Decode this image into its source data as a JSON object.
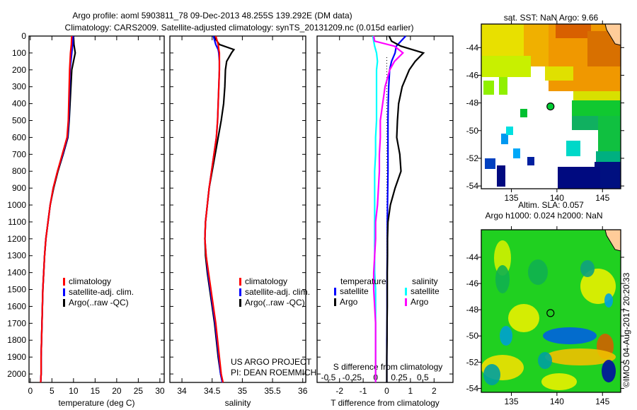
{
  "title_line1": "Argo profile: aoml 5903811_78 09-Dec-2013 48.255S 139.292E (DM data)",
  "title_line2": "Climatology: CARS2009. Satellite-adjusted climatology: synTS_20131209.nc (0.015d earlier)",
  "credit_line1": "US ARGO PROJECT",
  "credit_line2": "PI: DEAN ROEMMICH",
  "timestamp": "©IMOS 04-Aug-2017 20:20:33",
  "colors": {
    "climatology": "#ff0000",
    "satellite": "#0000ff",
    "argo": "#000000",
    "sal_sat": "#00ffff",
    "sal_argo": "#ff00ff",
    "land": "#ffcc99"
  },
  "chart_data": [
    {
      "type": "line",
      "name": "temperature",
      "xlabel": "temperature (deg C)",
      "xlim": [
        -0.3,
        31
      ],
      "ylim": [
        0,
        2050
      ],
      "y_reversed": true,
      "xticks": [
        "0",
        "5",
        "10",
        "15",
        "20",
        "25",
        "30"
      ],
      "xtick_values": [
        0,
        5,
        10,
        15,
        20,
        25,
        30
      ],
      "yticks": [
        "0",
        "100",
        "200",
        "300",
        "400",
        "500",
        "600",
        "700",
        "800",
        "900",
        "1000",
        "1100",
        "1200",
        "1300",
        "1400",
        "1500",
        "1600",
        "1700",
        "1800",
        "1900",
        "2000"
      ],
      "ytick_values": [
        0,
        100,
        200,
        300,
        400,
        500,
        600,
        700,
        800,
        900,
        1000,
        1100,
        1200,
        1300,
        1400,
        1500,
        1600,
        1700,
        1800,
        1900,
        2000
      ],
      "legend": [
        "climatology",
        "satellite-adj. clim.",
        "Argo(..raw -QC)"
      ],
      "depth": [
        0,
        50,
        100,
        200,
        300,
        400,
        500,
        600,
        700,
        800,
        900,
        1000,
        1100,
        1200,
        1300,
        1400,
        1500,
        1600,
        1700,
        1800,
        1900,
        2000,
        2050
      ],
      "series": [
        {
          "name": "climatology",
          "color": "#ff0000",
          "values": [
            9.6,
            9.5,
            9.3,
            9.1,
            9.0,
            8.9,
            8.8,
            8.5,
            7.4,
            6.3,
            5.3,
            4.6,
            4.1,
            3.6,
            3.3,
            3.1,
            2.9,
            2.8,
            2.7,
            2.6,
            2.5,
            2.5,
            2.4
          ]
        },
        {
          "name": "satellite-adj. clim.",
          "color": "#0000ff",
          "values": [
            9.9,
            9.8,
            9.6,
            9.2,
            9.1,
            9.0,
            8.9,
            8.6,
            7.5,
            6.3,
            5.3,
            4.6,
            4.1,
            3.6,
            3.3,
            3.1,
            2.9,
            2.8,
            2.7,
            2.6,
            2.5,
            2.5,
            2.4
          ]
        },
        {
          "name": "Argo(..raw -QC)",
          "color": "#000000",
          "values": [
            10.0,
            10.1,
            10.4,
            9.6,
            9.4,
            9.2,
            9.0,
            8.7,
            7.6,
            6.4,
            5.4,
            4.6,
            4.1,
            3.6,
            3.3,
            3.1,
            2.9,
            2.8,
            2.7,
            2.6,
            2.5,
            2.5,
            2.4
          ]
        }
      ]
    },
    {
      "type": "line",
      "name": "salinity",
      "xlabel": "salinity",
      "xlim": [
        33.8,
        36.05
      ],
      "ylim": [
        0,
        2050
      ],
      "y_reversed": true,
      "xticks": [
        "34",
        "34.5",
        "35",
        "35.5",
        "36"
      ],
      "xtick_values": [
        34,
        34.5,
        35,
        35.5,
        36
      ],
      "legend": [
        "climatology",
        "satellite-adj. clim.",
        "Argo(..raw -QC)"
      ],
      "depth": [
        0,
        50,
        80,
        100,
        150,
        200,
        300,
        400,
        500,
        600,
        700,
        800,
        900,
        1000,
        1100,
        1200,
        1300,
        1400,
        1500,
        1600,
        1700,
        1800,
        1900,
        2000,
        2050
      ],
      "series": [
        {
          "name": "climatology",
          "color": "#ff0000",
          "values": [
            34.56,
            34.6,
            34.61,
            34.62,
            34.62,
            34.62,
            34.61,
            34.6,
            34.59,
            34.57,
            34.53,
            34.49,
            34.45,
            34.42,
            34.39,
            34.38,
            34.4,
            34.44,
            34.48,
            34.52,
            34.56,
            34.59,
            34.62,
            34.65,
            34.68
          ]
        },
        {
          "name": "satellite-adj. clim.",
          "color": "#0000ff",
          "values": [
            34.52,
            34.56,
            34.6,
            34.61,
            34.62,
            34.62,
            34.61,
            34.6,
            34.59,
            34.57,
            34.53,
            34.49,
            34.45,
            34.42,
            34.39,
            34.38,
            34.4,
            34.43,
            34.47,
            34.51,
            34.55,
            34.58,
            34.61,
            34.64,
            34.67
          ]
        },
        {
          "name": "Argo(..raw -QC)",
          "color": "#000000",
          "values": [
            34.52,
            34.62,
            34.86,
            34.82,
            34.74,
            34.72,
            34.71,
            34.69,
            34.65,
            34.6,
            34.55,
            34.5,
            34.45,
            34.42,
            34.39,
            34.38,
            34.39,
            34.42,
            34.46,
            34.5,
            34.54,
            34.57,
            34.6,
            34.64,
            34.67
          ]
        }
      ]
    },
    {
      "type": "line",
      "name": "difference",
      "xlabel": "T difference from climatology",
      "xlabel_top": "S difference from climatology",
      "xlim": [
        -2.95,
        2.8
      ],
      "xlim_salinity": [
        -0.62,
        0.82
      ],
      "ylim": [
        0,
        2050
      ],
      "y_reversed": true,
      "xticks": [
        "-2",
        "-1",
        "0",
        "1",
        "2"
      ],
      "xtick_values": [
        -2,
        -1,
        0,
        1,
        2
      ],
      "sticks": [
        "-0.5",
        "-0.25",
        "0",
        "0.25",
        "0.5"
      ],
      "stick_values": [
        -0.5,
        -0.25,
        0,
        0.25,
        0.5
      ],
      "legend_temperature_title": "temperature",
      "legend_salinity_title": "salinity",
      "legend_temperature": [
        "satellite",
        "Argo"
      ],
      "legend_salinity": [
        "satellite",
        "Argo"
      ],
      "depth": [
        0,
        30,
        60,
        100,
        150,
        200,
        300,
        400,
        500,
        600,
        700,
        800,
        900,
        1000,
        1100,
        1200,
        1300,
        1400,
        1500,
        1600,
        1700,
        1800,
        1900,
        2000,
        2050
      ],
      "series": [
        {
          "name": "temperature satellite",
          "axis": "T",
          "color": "#0000ff",
          "values": [
            0.8,
            0.6,
            0.4,
            0.35,
            0.2,
            0.12,
            0.08,
            0.06,
            0.05,
            0.05,
            0.05,
            0.05,
            0.04,
            0.03,
            0.02,
            0.02,
            0.02,
            0.01,
            0.01,
            0.01,
            0.01,
            0.0,
            0.0,
            0.0,
            0.0
          ]
        },
        {
          "name": "temperature Argo",
          "axis": "T",
          "color": "#000000",
          "values": [
            0.1,
            0.2,
            0.6,
            1.55,
            1.2,
            0.95,
            0.65,
            0.5,
            0.45,
            0.42,
            0.55,
            0.6,
            0.35,
            0.15,
            0.05,
            0.03,
            0.03,
            0.02,
            0.02,
            0.02,
            0.01,
            0.01,
            0.0,
            0.0,
            0.0
          ]
        },
        {
          "name": "salinity satellite",
          "axis": "S",
          "color": "#00ffff",
          "values": [
            -0.03,
            -0.02,
            -0.01,
            0.01,
            0.02,
            0.01,
            0.01,
            0.01,
            0.01,
            0.0,
            0.0,
            -0.01,
            -0.01,
            -0.01,
            -0.01,
            -0.01,
            -0.01,
            -0.01,
            0.0,
            0.0,
            0.0,
            0.0,
            0.0,
            0.0,
            0.0
          ]
        },
        {
          "name": "salinity Argo",
          "axis": "S",
          "color": "#ff00ff",
          "values": [
            -0.02,
            -0.01,
            0.2,
            0.29,
            0.2,
            0.15,
            0.1,
            0.075,
            0.05,
            0.05,
            0.04,
            0.04,
            0.03,
            0.02,
            0.0,
            0.0,
            -0.01,
            -0.02,
            -0.02,
            -0.01,
            0.0,
            0.0,
            0.0,
            0.0,
            0.0
          ]
        }
      ]
    },
    {
      "type": "heatmap",
      "name": "sst-map",
      "title": "sat. SST: NaN Argo: 9.66",
      "xlim": [
        131.7,
        147
      ],
      "ylim": [
        -54.2,
        -42.3
      ],
      "xticks": [
        "135",
        "140",
        "145"
      ],
      "xtick_values": [
        135,
        140,
        145
      ],
      "yticks": [
        "-44",
        "-46",
        "-48",
        "-50",
        "-52",
        "-54"
      ],
      "ytick_values": [
        -44,
        -46,
        -48,
        -50,
        -52,
        -54
      ],
      "argo_position": {
        "lon": 139.292,
        "lat": -48.255
      }
    },
    {
      "type": "heatmap",
      "name": "sla-map",
      "title_line1": "Altim. SLA: 0.057",
      "title_line2": "Argo h1000: 0.024 h2000: NaN",
      "xlim": [
        131.7,
        147
      ],
      "ylim": [
        -54.3,
        -41.9
      ],
      "xticks": [
        "135",
        "140",
        "145"
      ],
      "xtick_values": [
        135,
        140,
        145
      ],
      "yticks": [
        "-44",
        "-46",
        "-48",
        "-50",
        "-52",
        "-54"
      ],
      "ytick_values": [
        -44,
        -46,
        -48,
        -50,
        -52,
        -54
      ],
      "argo_position": {
        "lon": 139.292,
        "lat": -48.255
      }
    }
  ]
}
